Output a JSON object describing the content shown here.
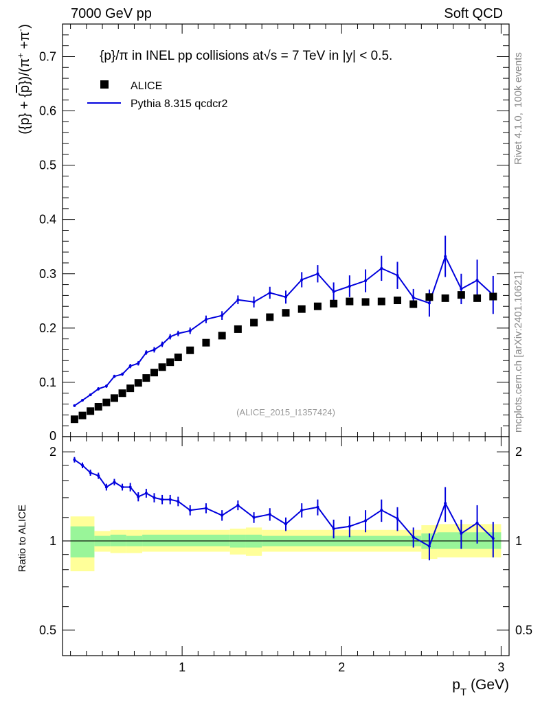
{
  "header": {
    "left": "7000 GeV pp",
    "right": "Soft QCD"
  },
  "side_labels": {
    "rivet": "Rivet 4.1.0,  100k events",
    "mcplots": "mcplots.cern.ch [arXiv:2401.10621]"
  },
  "watermark": "(ALICE_2015_I1357424)",
  "chart_data": [
    {
      "type": "scatter",
      "panel": "main",
      "title": "{p}/π in INEL pp collisions at√s = 7 TeV in |y| < 0.5.",
      "xlabel": "p_T (GeV)",
      "ylabel": "({p} + {p̅})/(π⁺ + π⁻)",
      "xlim": [
        0.25,
        3.05
      ],
      "ylim": [
        0,
        0.76
      ],
      "yticks": [
        {
          "v": 0.1,
          "label": "0.1"
        },
        {
          "v": 0.2,
          "label": "0.2"
        },
        {
          "v": 0.3,
          "label": "0.3"
        },
        {
          "v": 0.4,
          "label": "0.4"
        },
        {
          "v": 0.5,
          "label": "0.5"
        },
        {
          "v": 0.6,
          "label": "0.6"
        },
        {
          "v": 0.7,
          "label": "0.7"
        }
      ],
      "ytick_zero_label": "0",
      "legend": [
        {
          "name": "ALICE",
          "marker": "square",
          "color": "#000000"
        },
        {
          "name": "Pythia 8.315 qcdcr2",
          "marker": "line",
          "color": "#0000dd"
        }
      ],
      "x": [
        0.325,
        0.375,
        0.425,
        0.475,
        0.525,
        0.575,
        0.625,
        0.675,
        0.725,
        0.775,
        0.825,
        0.875,
        0.925,
        0.975,
        1.05,
        1.15,
        1.25,
        1.35,
        1.45,
        1.55,
        1.65,
        1.75,
        1.85,
        1.95,
        2.05,
        2.15,
        2.25,
        2.35,
        2.45,
        2.55,
        2.65,
        2.75,
        2.85,
        2.95
      ],
      "series": [
        {
          "name": "ALICE",
          "values": [
            0.032,
            0.039,
            0.047,
            0.055,
            0.063,
            0.071,
            0.08,
            0.089,
            0.099,
            0.108,
            0.118,
            0.128,
            0.137,
            0.146,
            0.159,
            0.173,
            0.186,
            0.198,
            0.21,
            0.22,
            0.228,
            0.235,
            0.24,
            0.245,
            0.249,
            0.248,
            0.249,
            0.251,
            0.244,
            0.257,
            0.255,
            0.261,
            0.255,
            0.258
          ]
        },
        {
          "name": "Pythia 8.315 qcdcr2",
          "values": [
            0.057,
            0.067,
            0.077,
            0.088,
            0.093,
            0.111,
            0.115,
            0.13,
            0.135,
            0.155,
            0.16,
            0.17,
            0.184,
            0.19,
            0.195,
            0.216,
            0.223,
            0.252,
            0.248,
            0.265,
            0.257,
            0.289,
            0.3,
            0.267,
            0.277,
            0.287,
            0.31,
            0.297,
            0.256,
            0.246,
            0.332,
            0.272,
            0.288,
            0.261
          ],
          "errors": [
            0.002,
            0.002,
            0.002,
            0.003,
            0.003,
            0.003,
            0.003,
            0.004,
            0.004,
            0.004,
            0.005,
            0.005,
            0.005,
            0.005,
            0.006,
            0.007,
            0.008,
            0.008,
            0.01,
            0.011,
            0.012,
            0.014,
            0.016,
            0.017,
            0.02,
            0.021,
            0.023,
            0.025,
            0.016,
            0.025,
            0.038,
            0.028,
            0.038,
            0.035
          ]
        }
      ]
    },
    {
      "type": "scatter",
      "panel": "ratio",
      "xlabel": "p_T (GeV)",
      "ylabel": "Ratio to ALICE",
      "xlim": [
        0.25,
        3.05
      ],
      "ylim": [
        0.41,
        2.25
      ],
      "yscale": "log",
      "yticks": [
        {
          "v": 0.5,
          "label": "0.5"
        },
        {
          "v": 1,
          "label": "1"
        },
        {
          "v": 2,
          "label": "2"
        }
      ],
      "xticks": [
        {
          "v": 1,
          "label": "1"
        },
        {
          "v": 2,
          "label": "2"
        },
        {
          "v": 3,
          "label": "3"
        }
      ],
      "x": [
        0.325,
        0.375,
        0.425,
        0.475,
        0.525,
        0.575,
        0.625,
        0.675,
        0.725,
        0.775,
        0.825,
        0.875,
        0.925,
        0.975,
        1.05,
        1.15,
        1.25,
        1.35,
        1.45,
        1.55,
        1.65,
        1.75,
        1.85,
        1.95,
        2.05,
        2.15,
        2.25,
        2.35,
        2.45,
        2.55,
        2.65,
        2.75,
        2.85,
        2.95
      ],
      "series": [
        {
          "name": "Pythia 8.315 qcdcr2 / ALICE",
          "values": [
            1.88,
            1.8,
            1.7,
            1.66,
            1.52,
            1.58,
            1.52,
            1.52,
            1.41,
            1.45,
            1.4,
            1.38,
            1.38,
            1.36,
            1.27,
            1.29,
            1.22,
            1.32,
            1.2,
            1.23,
            1.14,
            1.27,
            1.3,
            1.1,
            1.12,
            1.17,
            1.27,
            1.19,
            1.03,
            0.96,
            1.34,
            1.06,
            1.15,
            1.02
          ],
          "errors": [
            0.04,
            0.04,
            0.04,
            0.04,
            0.04,
            0.04,
            0.04,
            0.05,
            0.05,
            0.05,
            0.05,
            0.05,
            0.05,
            0.05,
            0.05,
            0.05,
            0.05,
            0.05,
            0.05,
            0.06,
            0.06,
            0.07,
            0.08,
            0.08,
            0.09,
            0.1,
            0.11,
            0.11,
            0.08,
            0.1,
            0.18,
            0.12,
            0.17,
            0.14
          ]
        }
      ],
      "bands": [
        {
          "x0": 0.3,
          "x1": 0.45,
          "in": [
            0.88,
            1.12
          ],
          "out": [
            0.79,
            1.21
          ]
        },
        {
          "x0": 0.45,
          "x1": 0.55,
          "in": [
            0.96,
            1.04
          ],
          "out": [
            0.92,
            1.08
          ]
        },
        {
          "x0": 0.55,
          "x1": 0.65,
          "in": [
            0.96,
            1.05
          ],
          "out": [
            0.91,
            1.09
          ]
        },
        {
          "x0": 0.65,
          "x1": 0.75,
          "in": [
            0.96,
            1.04
          ],
          "out": [
            0.91,
            1.09
          ]
        },
        {
          "x0": 0.75,
          "x1": 1.3,
          "in": [
            0.96,
            1.05
          ],
          "out": [
            0.92,
            1.09
          ]
        },
        {
          "x0": 1.3,
          "x1": 1.4,
          "in": [
            0.95,
            1.05
          ],
          "out": [
            0.9,
            1.1
          ]
        },
        {
          "x0": 1.4,
          "x1": 1.5,
          "in": [
            0.95,
            1.05
          ],
          "out": [
            0.89,
            1.11
          ]
        },
        {
          "x0": 1.5,
          "x1": 2.5,
          "in": [
            0.96,
            1.04
          ],
          "out": [
            0.92,
            1.09
          ]
        },
        {
          "x0": 2.5,
          "x1": 2.6,
          "in": [
            0.94,
            1.06
          ],
          "out": [
            0.87,
            1.13
          ]
        },
        {
          "x0": 2.6,
          "x1": 3.0,
          "in": [
            0.94,
            1.07
          ],
          "out": [
            0.88,
            1.14
          ]
        }
      ]
    }
  ]
}
